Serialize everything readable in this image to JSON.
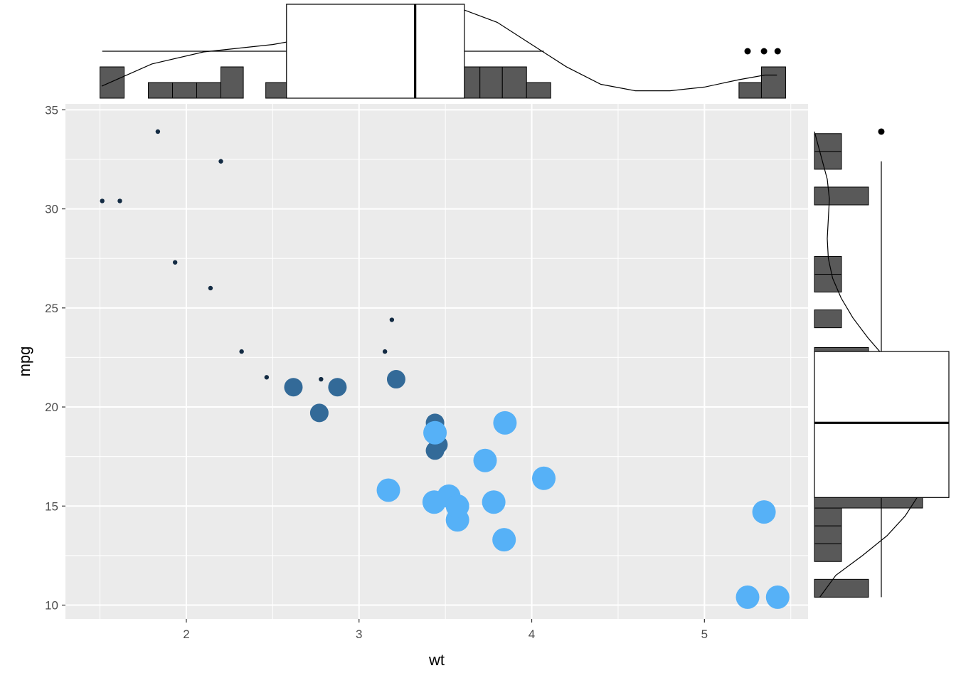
{
  "chart_data": {
    "type": "scatter",
    "title": "",
    "xlabel": "wt",
    "ylabel": "mpg",
    "xlim": [
      1.3,
      5.6
    ],
    "ylim": [
      9.3,
      35.3
    ],
    "xticks": [
      2,
      3,
      4,
      5
    ],
    "yticks": [
      10,
      15,
      20,
      25,
      30,
      35
    ],
    "xtick_labels": [
      "2",
      "3",
      "4",
      "5"
    ],
    "ytick_labels": [
      "10",
      "15",
      "20",
      "25",
      "30",
      "35"
    ],
    "grid": true,
    "legend": "none",
    "colors": {
      "panel_bg": "#ebebeb",
      "grid": "#ffffff",
      "small_point": "#132b43",
      "medium_point": "#336a98",
      "large_point": "#56b1f7",
      "histogram_bar": "#595959",
      "box_fill": "#ffffff",
      "line": "#000000"
    },
    "points": [
      {
        "x": 2.62,
        "y": 21.0,
        "size": 6,
        "color": "#336a98"
      },
      {
        "x": 2.875,
        "y": 21.0,
        "size": 6,
        "color": "#336a98"
      },
      {
        "x": 2.32,
        "y": 22.8,
        "size": 4,
        "color": "#132b43"
      },
      {
        "x": 3.215,
        "y": 21.4,
        "size": 6,
        "color": "#336a98"
      },
      {
        "x": 3.44,
        "y": 18.7,
        "size": 8,
        "color": "#56b1f7"
      },
      {
        "x": 3.46,
        "y": 18.1,
        "size": 6,
        "color": "#336a98"
      },
      {
        "x": 3.57,
        "y": 14.3,
        "size": 8,
        "color": "#56b1f7"
      },
      {
        "x": 3.19,
        "y": 24.4,
        "size": 4,
        "color": "#132b43"
      },
      {
        "x": 3.15,
        "y": 22.8,
        "size": 4,
        "color": "#132b43"
      },
      {
        "x": 3.44,
        "y": 19.2,
        "size": 6,
        "color": "#336a98"
      },
      {
        "x": 3.44,
        "y": 17.8,
        "size": 6,
        "color": "#336a98"
      },
      {
        "x": 4.07,
        "y": 16.4,
        "size": 8,
        "color": "#56b1f7"
      },
      {
        "x": 3.73,
        "y": 17.3,
        "size": 8,
        "color": "#56b1f7"
      },
      {
        "x": 3.78,
        "y": 15.2,
        "size": 8,
        "color": "#56b1f7"
      },
      {
        "x": 5.25,
        "y": 10.4,
        "size": 8,
        "color": "#56b1f7"
      },
      {
        "x": 5.424,
        "y": 10.4,
        "size": 8,
        "color": "#56b1f7"
      },
      {
        "x": 5.345,
        "y": 14.7,
        "size": 8,
        "color": "#56b1f7"
      },
      {
        "x": 2.2,
        "y": 32.4,
        "size": 4,
        "color": "#132b43"
      },
      {
        "x": 1.615,
        "y": 30.4,
        "size": 4,
        "color": "#132b43"
      },
      {
        "x": 1.835,
        "y": 33.9,
        "size": 4,
        "color": "#132b43"
      },
      {
        "x": 2.465,
        "y": 21.5,
        "size": 4,
        "color": "#132b43"
      },
      {
        "x": 3.52,
        "y": 15.5,
        "size": 8,
        "color": "#56b1f7"
      },
      {
        "x": 3.435,
        "y": 15.2,
        "size": 8,
        "color": "#56b1f7"
      },
      {
        "x": 3.84,
        "y": 13.3,
        "size": 8,
        "color": "#56b1f7"
      },
      {
        "x": 3.845,
        "y": 19.2,
        "size": 8,
        "color": "#56b1f7"
      },
      {
        "x": 1.935,
        "y": 27.3,
        "size": 4,
        "color": "#132b43"
      },
      {
        "x": 2.14,
        "y": 26.0,
        "size": 4,
        "color": "#132b43"
      },
      {
        "x": 1.513,
        "y": 30.4,
        "size": 4,
        "color": "#132b43"
      },
      {
        "x": 3.17,
        "y": 15.8,
        "size": 8,
        "color": "#56b1f7"
      },
      {
        "x": 2.77,
        "y": 19.7,
        "size": 6,
        "color": "#336a98"
      },
      {
        "x": 3.57,
        "y": 15.0,
        "size": 8,
        "color": "#56b1f7"
      },
      {
        "x": 2.78,
        "y": 21.4,
        "size": 4,
        "color": "#132b43"
      }
    ],
    "marginal_x": {
      "histogram": {
        "bins": [
          [
            1.5,
            1.64,
            2
          ],
          [
            1.78,
            1.92,
            1
          ],
          [
            1.92,
            2.06,
            1
          ],
          [
            2.06,
            2.2,
            1
          ],
          [
            2.2,
            2.33,
            2
          ],
          [
            2.46,
            2.6,
            1
          ],
          [
            2.6,
            2.73,
            1
          ],
          [
            2.73,
            2.87,
            3
          ],
          [
            2.87,
            3.01,
            1
          ],
          [
            3.14,
            3.28,
            4
          ],
          [
            3.28,
            3.42,
            2
          ],
          [
            3.42,
            3.56,
            3
          ],
          [
            3.56,
            3.7,
            2
          ],
          [
            3.7,
            3.83,
            2
          ],
          [
            3.83,
            3.97,
            2
          ],
          [
            3.97,
            4.11,
            1
          ],
          [
            5.2,
            5.33,
            1
          ],
          [
            5.33,
            5.47,
            2
          ]
        ]
      },
      "boxplot": {
        "q1": 2.58,
        "median": 3.325,
        "q3": 3.61,
        "whisker_low": 1.513,
        "whisker_high": 4.07,
        "outliers": [
          5.25,
          5.345,
          5.424
        ]
      },
      "density": [
        [
          1.51,
          0.13
        ],
        [
          1.8,
          0.37
        ],
        [
          2.1,
          0.5
        ],
        [
          2.5,
          0.58
        ],
        [
          2.8,
          0.68
        ],
        [
          3.1,
          0.86
        ],
        [
          3.3,
          0.95
        ],
        [
          3.45,
          1.0
        ],
        [
          3.6,
          0.96
        ],
        [
          3.8,
          0.82
        ],
        [
          4.0,
          0.58
        ],
        [
          4.2,
          0.34
        ],
        [
          4.4,
          0.15
        ],
        [
          4.6,
          0.08
        ],
        [
          4.8,
          0.08
        ],
        [
          5.0,
          0.12
        ],
        [
          5.2,
          0.2
        ],
        [
          5.35,
          0.25
        ],
        [
          5.42,
          0.25
        ]
      ]
    },
    "marginal_y": {
      "histogram": {
        "bins": [
          [
            10.4,
            11.3,
            2
          ],
          [
            12.2,
            13.1,
            1
          ],
          [
            13.1,
            14.0,
            1
          ],
          [
            14.0,
            14.9,
            1
          ],
          [
            14.9,
            15.8,
            4
          ],
          [
            15.8,
            16.7,
            2
          ],
          [
            16.7,
            17.6,
            1
          ],
          [
            17.6,
            18.5,
            2
          ],
          [
            18.5,
            19.4,
            2
          ],
          [
            19.4,
            20.3,
            2
          ],
          [
            20.3,
            21.2,
            2
          ],
          [
            21.2,
            22.1,
            1
          ],
          [
            22.1,
            23.0,
            2
          ],
          [
            24.0,
            24.9,
            1
          ],
          [
            25.8,
            26.7,
            1
          ],
          [
            26.7,
            27.6,
            1
          ],
          [
            30.2,
            31.1,
            2
          ],
          [
            32.0,
            32.9,
            1
          ],
          [
            32.9,
            33.8,
            1
          ]
        ]
      },
      "boxplot": {
        "q1": 15.43,
        "median": 19.2,
        "q3": 22.8,
        "whisker_low": 10.4,
        "whisker_high": 32.4,
        "outliers": [
          33.9
        ]
      },
      "density": [
        [
          10.4,
          0.05
        ],
        [
          11.5,
          0.2
        ],
        [
          12.5,
          0.45
        ],
        [
          13.5,
          0.68
        ],
        [
          14.5,
          0.85
        ],
        [
          15.5,
          0.97
        ],
        [
          16.5,
          1.0
        ],
        [
          17.5,
          0.99
        ],
        [
          18.5,
          0.96
        ],
        [
          19.5,
          0.9
        ],
        [
          20.5,
          0.84
        ],
        [
          21.5,
          0.76
        ],
        [
          22.5,
          0.66
        ],
        [
          23.5,
          0.5
        ],
        [
          24.5,
          0.36
        ],
        [
          25.5,
          0.25
        ],
        [
          26.5,
          0.17
        ],
        [
          27.5,
          0.13
        ],
        [
          28.5,
          0.12
        ],
        [
          29.5,
          0.13
        ],
        [
          30.5,
          0.14
        ],
        [
          31.5,
          0.12
        ],
        [
          32.5,
          0.07
        ],
        [
          33.5,
          0.02
        ],
        [
          33.9,
          0.0
        ]
      ]
    }
  }
}
